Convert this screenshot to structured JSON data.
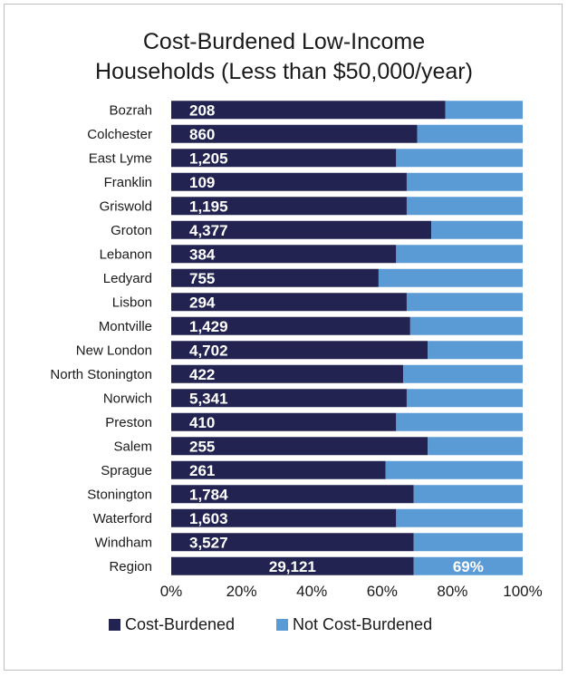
{
  "chart_data": {
    "type": "bar",
    "orientation": "horizontal",
    "stacked": true,
    "percent_scale": true,
    "title_lines": [
      "Cost-Burdened Low-Income",
      "Households (Less than $50,000/year)"
    ],
    "categories": [
      "Bozrah",
      "Colchester",
      "East Lyme",
      "Franklin",
      "Griswold",
      "Groton",
      "Lebanon",
      "Ledyard",
      "Lisbon",
      "Montville",
      "New London",
      "North Stonington",
      "Norwich",
      "Preston",
      "Salem",
      "Sprague",
      "Stonington",
      "Waterford",
      "Windham",
      "Region"
    ],
    "series": [
      {
        "name": "Cost-Burdened",
        "color": "#222350",
        "values": [
          78,
          70,
          64,
          67,
          67,
          74,
          64,
          59,
          67,
          68,
          73,
          66,
          67,
          64,
          73,
          61,
          69,
          64,
          69,
          69
        ],
        "labels": [
          "208",
          "860",
          "1,205",
          "109",
          "1,195",
          "4,377",
          "384",
          "755",
          "294",
          "1,429",
          "4,702",
          "422",
          "5,341",
          "410",
          "255",
          "261",
          "1,784",
          "1,603",
          "3,527",
          "29,121"
        ]
      },
      {
        "name": "Not Cost-Burdened",
        "color": "#5b9bd5",
        "values": [
          22,
          30,
          36,
          33,
          33,
          26,
          36,
          41,
          33,
          32,
          27,
          34,
          33,
          36,
          27,
          39,
          31,
          36,
          31,
          31
        ]
      }
    ],
    "region_percent_label": "69%",
    "x_ticks": [
      "0%",
      "20%",
      "40%",
      "60%",
      "80%",
      "100%"
    ],
    "xlim": [
      0,
      100
    ],
    "grid": false,
    "legend_position": "bottom"
  }
}
